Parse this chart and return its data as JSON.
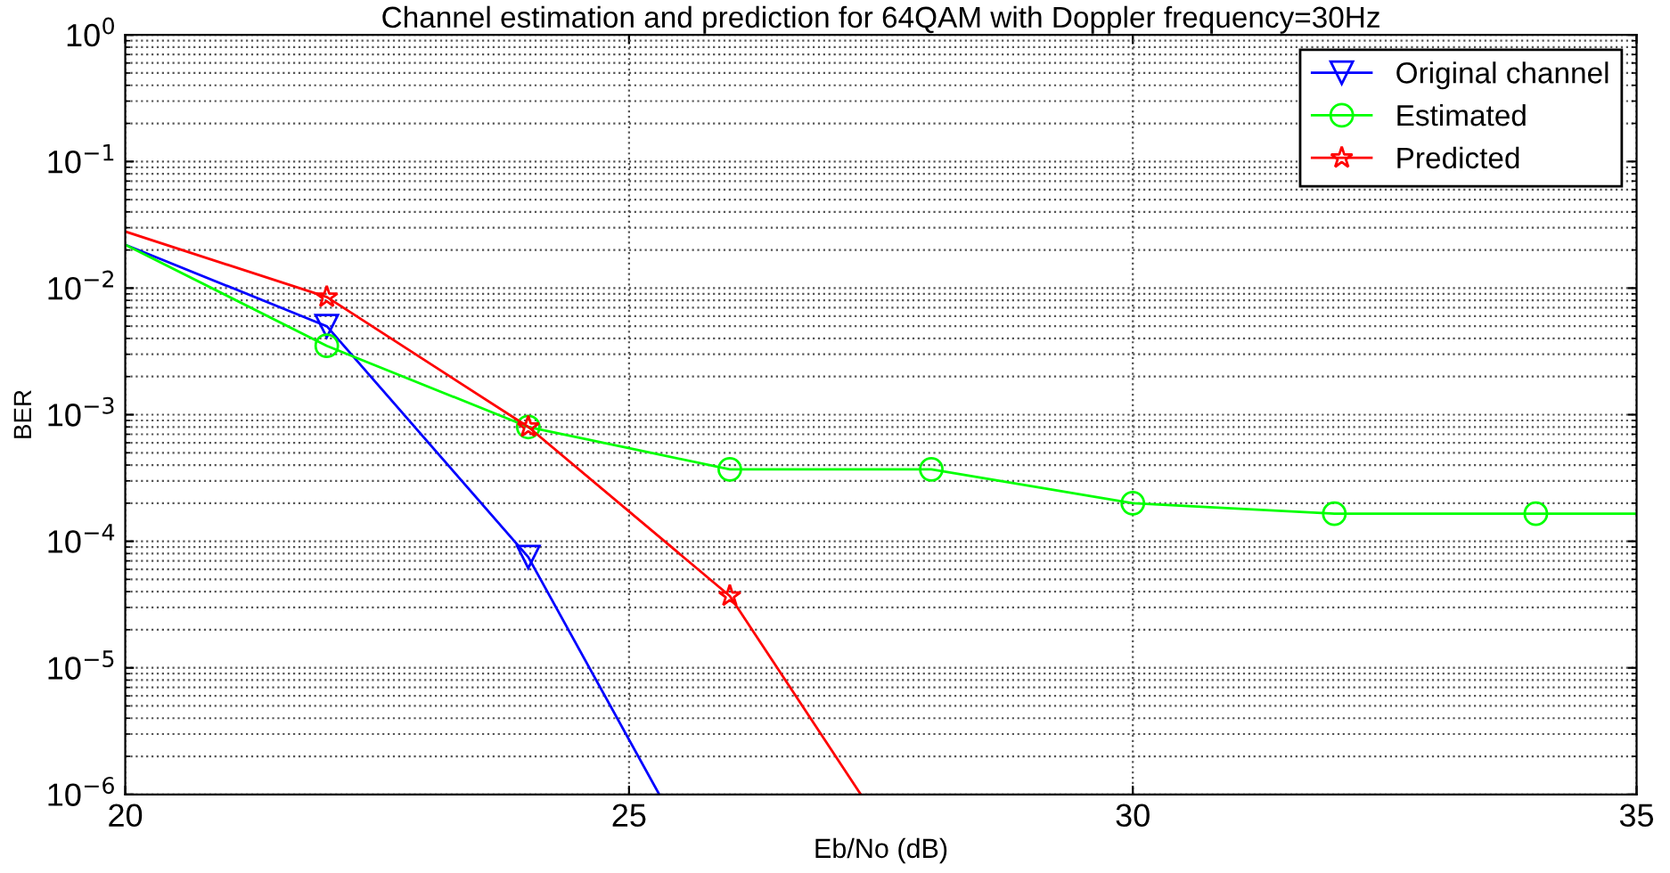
{
  "chart_data": {
    "type": "line",
    "title": "Channel estimation and prediction for 64QAM with Doppler frequency=30Hz",
    "xlabel": "Eb/No (dB)",
    "ylabel": "BER",
    "log": "y",
    "grid": true,
    "legend": "top right",
    "line_style": "solid",
    "xlim": [
      20,
      35
    ],
    "xticks": [
      20,
      25,
      30,
      35
    ],
    "ylim": [
      1e-06,
      1
    ],
    "yticks": [
      {
        "value": 1e-06,
        "label": "10$^{−6}$"
      },
      {
        "value": 1e-05,
        "label": "10$^{−5}$"
      },
      {
        "value": 0.0001,
        "label": "10$^{−4}$"
      },
      {
        "value": 0.001,
        "label": "10$^{−3}$"
      },
      {
        "value": 0.01,
        "label": "10$^{−2}$"
      },
      {
        "value": 0.1,
        "label": "10$^{−1}$"
      },
      {
        "value": 1,
        "label": "10$^{0}$"
      }
    ],
    "series": [
      {
        "name": "Original channel",
        "color": "#0000ff",
        "marker": "triangle",
        "x": [
          20,
          22,
          24,
          25.3
        ],
        "values": [
          0.022,
          0.005,
          7.5e-05,
          1e-06
        ]
      },
      {
        "name": "Estimated",
        "color": "#00ff00",
        "marker": "circle",
        "x": [
          20,
          22,
          24,
          26,
          28,
          30,
          32,
          34,
          35
        ],
        "values": [
          0.022,
          0.0035,
          0.0008,
          0.00037,
          0.00037,
          0.0002,
          0.000165,
          0.000165,
          0.000165
        ]
      },
      {
        "name": "Predicted",
        "color": "#ff0000",
        "marker": "star",
        "x": [
          20,
          22,
          24,
          26,
          27.3
        ],
        "values": [
          0.028,
          0.0085,
          0.0008,
          3.7e-05,
          1e-06
        ]
      }
    ]
  }
}
